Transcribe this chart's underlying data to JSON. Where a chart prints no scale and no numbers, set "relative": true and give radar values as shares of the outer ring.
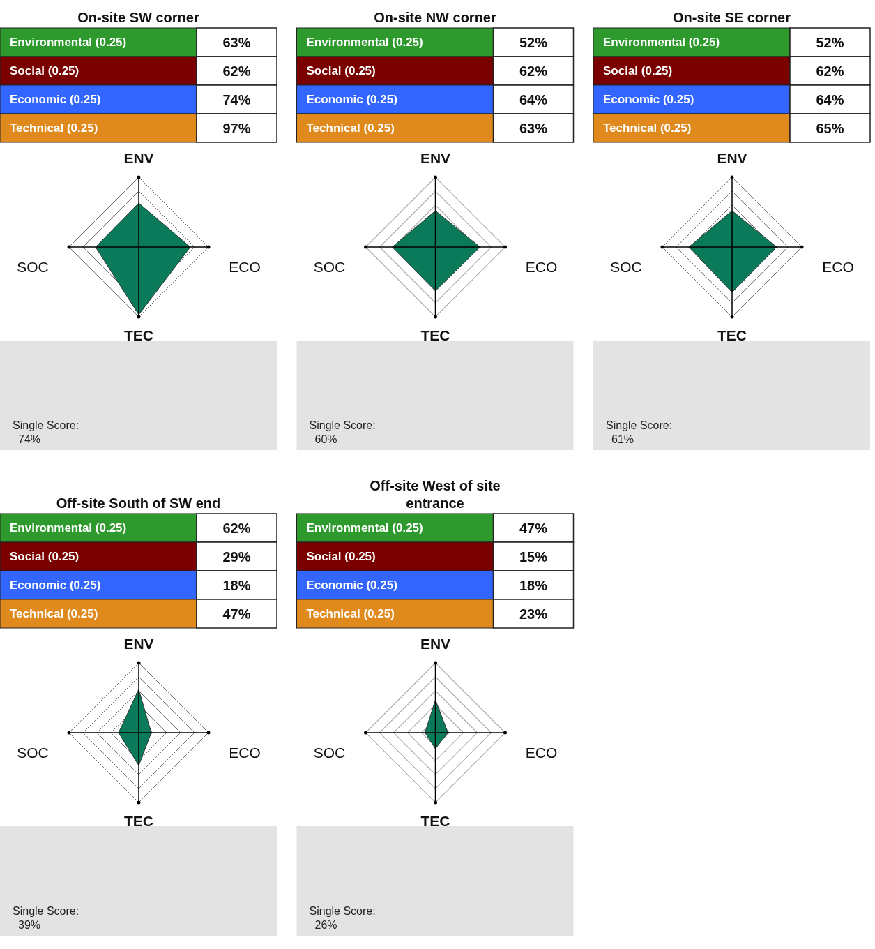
{
  "chart_data": [
    {
      "type": "other",
      "title": "On-site SW corner",
      "categories": [
        "Environmental (0.25)",
        "Social (0.25)",
        "Economic (0.25)",
        "Technical (0.25)"
      ],
      "colors": [
        "#2e9a2e",
        "#7a0000",
        "#3366ff",
        "#e08a1e"
      ],
      "value_labels": [
        "63%",
        "62%",
        "74%",
        "97%"
      ]
    },
    {
      "type": "radar",
      "categories": [
        "ENV",
        "ECO",
        "TEC",
        "SOC"
      ],
      "series": [
        {
          "color": "#0a7a5a",
          "values": [
            0.63,
            0.74,
            0.97,
            0.62
          ]
        }
      ],
      "relative": true,
      "grid": true,
      "marker": "none",
      "annotations": [
        "Single Score:",
        "74%"
      ]
    },
    {
      "type": "other",
      "title": "On-site NW corner",
      "categories": [
        "Environmental (0.25)",
        "Social (0.25)",
        "Economic (0.25)",
        "Technical (0.25)"
      ],
      "colors": [
        "#2e9a2e",
        "#7a0000",
        "#3366ff",
        "#e08a1e"
      ],
      "value_labels": [
        "52%",
        "62%",
        "64%",
        "63%"
      ]
    },
    {
      "type": "radar",
      "categories": [
        "ENV",
        "ECO",
        "TEC",
        "SOC"
      ],
      "series": [
        {
          "color": "#0a7a5a",
          "values": [
            0.52,
            0.64,
            0.63,
            0.62
          ]
        }
      ],
      "relative": true,
      "grid": true,
      "marker": "none",
      "annotations": [
        "Single Score:",
        "60%"
      ]
    },
    {
      "type": "other",
      "title": "On-site SE corner",
      "categories": [
        "Environmental (0.25)",
        "Social (0.25)",
        "Economic (0.25)",
        "Technical (0.25)"
      ],
      "colors": [
        "#2e9a2e",
        "#7a0000",
        "#3366ff",
        "#e08a1e"
      ],
      "value_labels": [
        "52%",
        "62%",
        "64%",
        "65%"
      ]
    },
    {
      "type": "radar",
      "categories": [
        "ENV",
        "ECO",
        "TEC",
        "SOC"
      ],
      "series": [
        {
          "color": "#0a7a5a",
          "values": [
            0.52,
            0.64,
            0.65,
            0.62
          ]
        }
      ],
      "relative": true,
      "grid": true,
      "marker": "none",
      "annotations": [
        "Single Score:",
        "61%"
      ]
    },
    {
      "type": "other",
      "title": "Off-site South of SW end",
      "categories": [
        "Environmental (0.25)",
        "Social (0.25)",
        "Economic (0.25)",
        "Technical (0.25)"
      ],
      "colors": [
        "#2e9a2e",
        "#7a0000",
        "#3366ff",
        "#e08a1e"
      ],
      "value_labels": [
        "62%",
        "29%",
        "18%",
        "47%"
      ]
    },
    {
      "type": "radar",
      "categories": [
        "ENV",
        "ECO",
        "TEC",
        "SOC"
      ],
      "series": [
        {
          "color": "#0a7a5a",
          "values": [
            0.62,
            0.18,
            0.47,
            0.29
          ]
        }
      ],
      "relative": true,
      "grid": true,
      "marker": "none",
      "annotations": [
        "Single Score:",
        "39%"
      ]
    },
    {
      "type": "other",
      "title": "Off-site West of site entrance",
      "categories": [
        "Environmental (0.25)",
        "Social (0.25)",
        "Economic (0.25)",
        "Technical (0.25)"
      ],
      "colors": [
        "#2e9a2e",
        "#7a0000",
        "#3366ff",
        "#e08a1e"
      ],
      "value_labels": [
        "47%",
        "15%",
        "18%",
        "23%"
      ]
    },
    {
      "type": "radar",
      "categories": [
        "ENV",
        "ECO",
        "TEC",
        "SOC"
      ],
      "series": [
        {
          "color": "#0a7a5a",
          "values": [
            0.47,
            0.18,
            0.23,
            0.15
          ]
        }
      ],
      "relative": true,
      "grid": true,
      "marker": "none",
      "annotations": [
        "Single Score:",
        "26%"
      ]
    }
  ]
}
